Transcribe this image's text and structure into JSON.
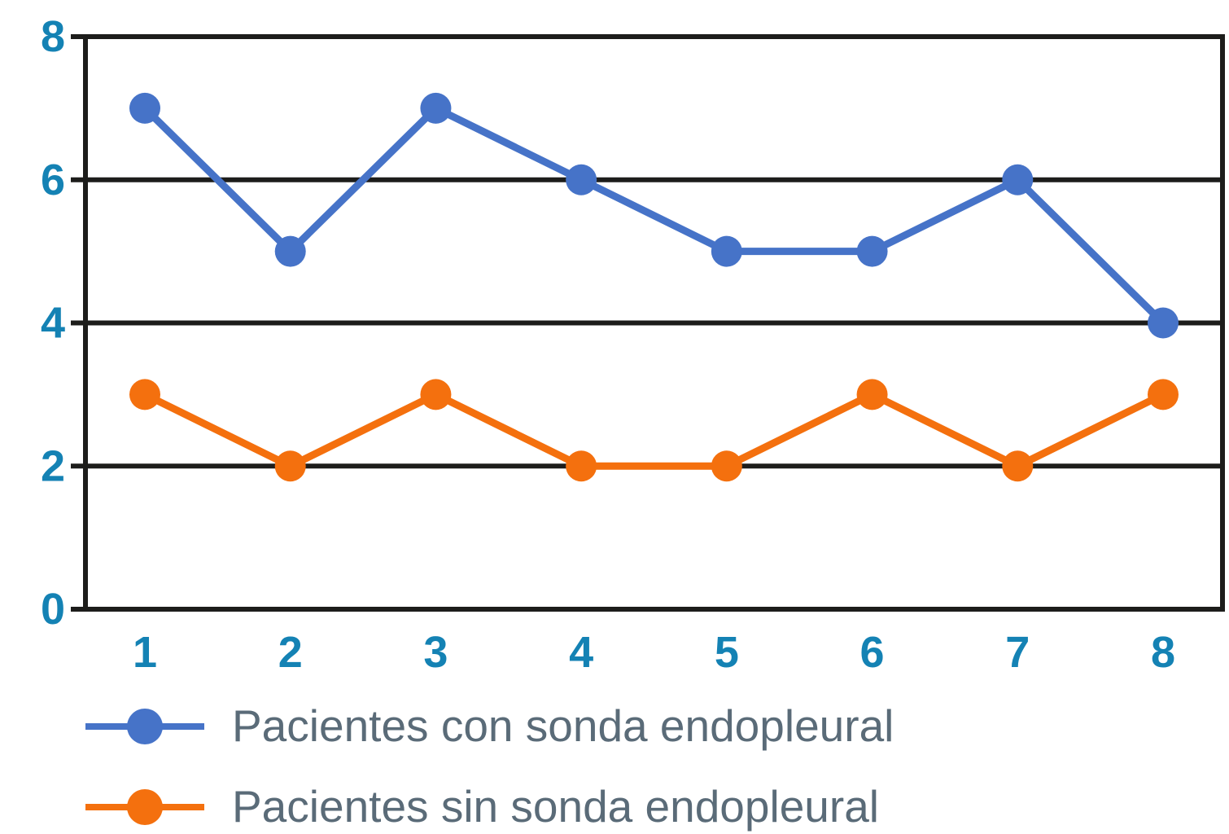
{
  "chart_data": {
    "type": "line",
    "x": [
      "1",
      "2",
      "3",
      "4",
      "5",
      "6",
      "7",
      "8"
    ],
    "series": [
      {
        "name": "Pacientes con sonda endopleural",
        "color": "#4673C8",
        "values": [
          7,
          5,
          7,
          6,
          5,
          5,
          6,
          4
        ]
      },
      {
        "name": "Pacientes sin sonda endopleural",
        "color": "#F4700E",
        "values": [
          3,
          2,
          3,
          2,
          2,
          3,
          2,
          3
        ]
      }
    ],
    "ylim": [
      0,
      8
    ],
    "yticks": [
      0,
      2,
      4,
      6,
      8
    ],
    "grid": "horizontal",
    "grid_color": "#1D1D1B",
    "axis_color": "#1D1D1B",
    "tick_label_color": "#1482B4",
    "legend_position": "bottom-left",
    "legend_text_color": "#5A6B78",
    "marker": "circle"
  }
}
